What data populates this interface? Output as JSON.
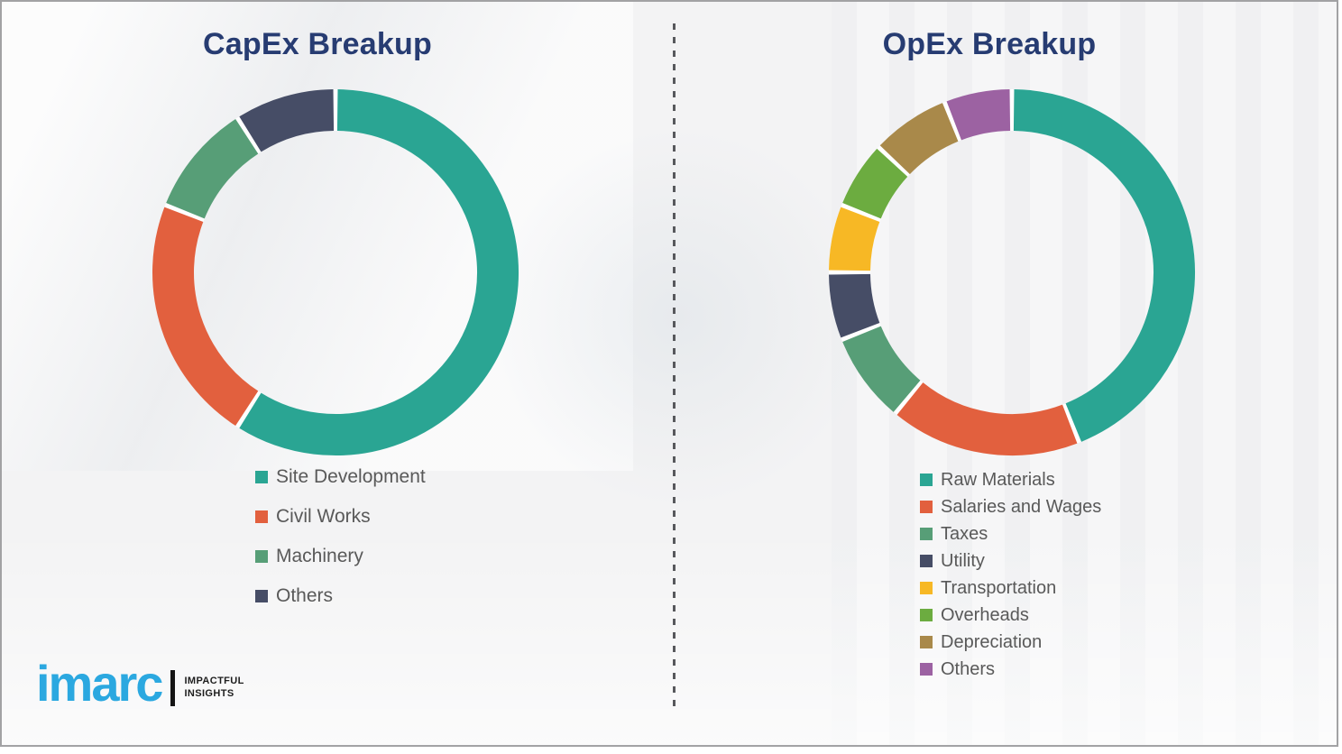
{
  "page": {
    "background_color": "#f3f3f4",
    "divider_color": "#57585c"
  },
  "chart_data": [
    {
      "type": "pie",
      "variant": "donut",
      "title": "CapEx Breakup",
      "labels": [
        "Site Development",
        "Civil Works",
        "Machinery",
        "Others"
      ],
      "values": [
        59,
        22,
        10,
        9
      ],
      "unit": "percent",
      "colors": [
        "#2aa593",
        "#e2603e",
        "#579e77",
        "#464d66"
      ],
      "start_angle_deg": 0,
      "direction": "clockwise",
      "legend_position": "below-left",
      "data_labels_shown": false
    },
    {
      "type": "pie",
      "variant": "donut",
      "title": "OpEx Breakup",
      "labels": [
        "Raw Materials",
        "Salaries and Wages",
        "Taxes",
        "Utility",
        "Transportation",
        "Overheads",
        "Depreciation",
        "Others"
      ],
      "values": [
        44,
        17,
        8,
        6,
        6,
        6,
        7,
        6
      ],
      "unit": "percent",
      "colors": [
        "#2aa593",
        "#e2603e",
        "#579e77",
        "#464d66",
        "#f7b825",
        "#6cac40",
        "#a9894a",
        "#9c62a2"
      ],
      "start_angle_deg": 0,
      "direction": "clockwise",
      "legend_position": "below-left",
      "data_labels_shown": false
    }
  ],
  "logo": {
    "brand": "imarc",
    "tagline_line1": "IMPACTFUL",
    "tagline_line2": "INSIGHTS",
    "brand_color": "#2ba8e0"
  }
}
